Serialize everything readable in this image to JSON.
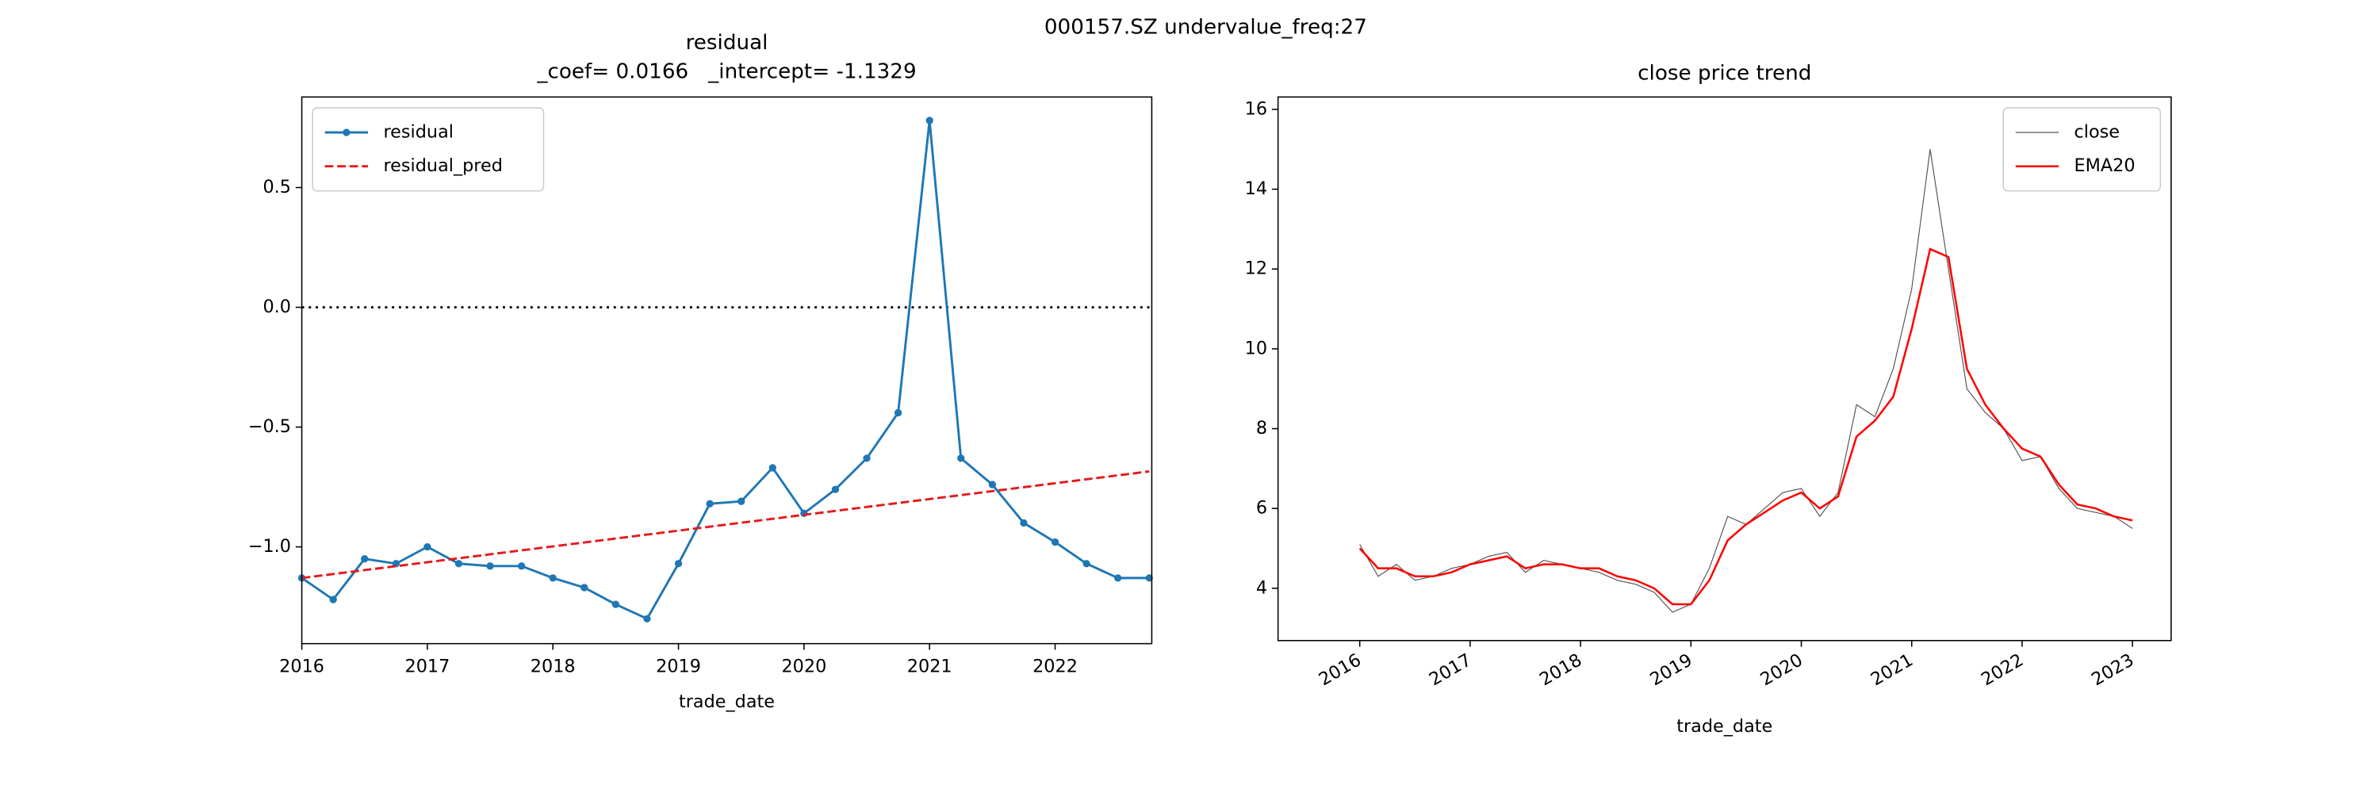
{
  "suptitle": "000157.SZ undervalue_freq:27",
  "chart_data": [
    {
      "type": "line",
      "title": "residual",
      "subtitle": "_coef= 0.0166   _intercept= -1.1329",
      "xlabel": "trade_date",
      "xlim": [
        2016,
        2022.77
      ],
      "ylim": [
        -1.404,
        0.878
      ],
      "xticks": [
        2016,
        2017,
        2018,
        2019,
        2020,
        2021,
        2022
      ],
      "yticks": [
        0.5,
        {
          "value": 0,
          "label": "0.0"
        },
        {
          "value": -0.5,
          "label": "−0.5"
        },
        {
          "value": -1,
          "label": "−1.0"
        }
      ],
      "reference_line": 0,
      "legend": "upper left",
      "series": [
        {
          "name": "residual",
          "color": "#1f77b4",
          "marker": true,
          "dash": "solid",
          "x": [
            2016,
            2016.25,
            2016.5,
            2016.75,
            2017,
            2017.25,
            2017.5,
            2017.75,
            2018,
            2018.25,
            2018.5,
            2018.75,
            2019,
            2019.25,
            2019.5,
            2019.75,
            2020,
            2020.25,
            2020.5,
            2020.75,
            2021,
            2021.25,
            2021.5,
            2021.75,
            2022,
            2022.25,
            2022.5,
            2022.75
          ],
          "values": [
            -1.13,
            -1.22,
            -1.05,
            -1.07,
            -1.0,
            -1.07,
            -1.08,
            -1.08,
            -1.13,
            -1.17,
            -1.24,
            -1.3,
            -1.07,
            -0.82,
            -0.81,
            -0.67,
            -0.86,
            -0.76,
            -0.63,
            -0.44,
            0.78,
            -0.63,
            -0.74,
            -0.9,
            -0.98,
            -1.07,
            -1.13,
            -1.13
          ]
        },
        {
          "name": "residual_pred",
          "color": "#e41a1c",
          "marker": false,
          "dash": "dashed",
          "x": [
            2016,
            2022.75
          ],
          "values": [
            -1.13,
            -0.685
          ]
        }
      ]
    },
    {
      "type": "line",
      "title": "close price trend",
      "xlabel": "trade_date",
      "xlim": [
        2015.26,
        2023.35
      ],
      "ylim": [
        2.69,
        16.31
      ],
      "xticks": [
        2016,
        2017,
        2018,
        2019,
        2020,
        2021,
        2022,
        2023
      ],
      "yticks": [
        4,
        6,
        8,
        10,
        12,
        14,
        16
      ],
      "legend": "upper right",
      "rotate_xticks": true,
      "series": [
        {
          "name": "close",
          "color": "#555555",
          "marker": false,
          "dash": "solid",
          "width": 0.6,
          "x": [
            2016,
            2016.167,
            2016.333,
            2016.5,
            2016.667,
            2016.833,
            2017,
            2017.167,
            2017.333,
            2017.5,
            2017.667,
            2017.833,
            2018,
            2018.167,
            2018.333,
            2018.5,
            2018.667,
            2018.833,
            2019,
            2019.167,
            2019.333,
            2019.5,
            2019.667,
            2019.833,
            2020,
            2020.167,
            2020.333,
            2020.5,
            2020.667,
            2020.833,
            2021,
            2021.167,
            2021.333,
            2021.5,
            2021.667,
            2021.833,
            2022,
            2022.167,
            2022.333,
            2022.5,
            2022.667,
            2022.833,
            2023
          ],
          "values": [
            5.1,
            4.3,
            4.6,
            4.2,
            4.3,
            4.5,
            4.6,
            4.8,
            4.9,
            4.4,
            4.7,
            4.6,
            4.5,
            4.4,
            4.2,
            4.1,
            3.9,
            3.4,
            3.6,
            4.5,
            5.8,
            5.6,
            6.0,
            6.4,
            6.5,
            5.8,
            6.4,
            8.6,
            8.3,
            9.5,
            11.5,
            15.0,
            12.0,
            9.0,
            8.4,
            8.0,
            7.2,
            7.3,
            6.5,
            6.0,
            5.9,
            5.8,
            5.5
          ]
        },
        {
          "name": "EMA20",
          "color": "#ff0000",
          "marker": false,
          "dash": "solid",
          "width": 1.3,
          "x": [
            2016,
            2016.167,
            2016.333,
            2016.5,
            2016.667,
            2016.833,
            2017,
            2017.167,
            2017.333,
            2017.5,
            2017.667,
            2017.833,
            2018,
            2018.167,
            2018.333,
            2018.5,
            2018.667,
            2018.833,
            2019,
            2019.167,
            2019.333,
            2019.5,
            2019.667,
            2019.833,
            2020,
            2020.167,
            2020.333,
            2020.5,
            2020.667,
            2020.833,
            2021,
            2021.167,
            2021.333,
            2021.5,
            2021.667,
            2021.833,
            2022,
            2022.167,
            2022.333,
            2022.5,
            2022.667,
            2022.833,
            2023
          ],
          "values": [
            5.0,
            4.5,
            4.5,
            4.3,
            4.3,
            4.4,
            4.6,
            4.7,
            4.8,
            4.5,
            4.6,
            4.6,
            4.5,
            4.5,
            4.3,
            4.2,
            4.0,
            3.6,
            3.6,
            4.2,
            5.2,
            5.6,
            5.9,
            6.2,
            6.4,
            6.0,
            6.3,
            7.8,
            8.2,
            8.8,
            10.5,
            12.5,
            12.3,
            9.5,
            8.6,
            8.0,
            7.5,
            7.3,
            6.6,
            6.1,
            6.0,
            5.8,
            5.7
          ]
        }
      ]
    }
  ]
}
